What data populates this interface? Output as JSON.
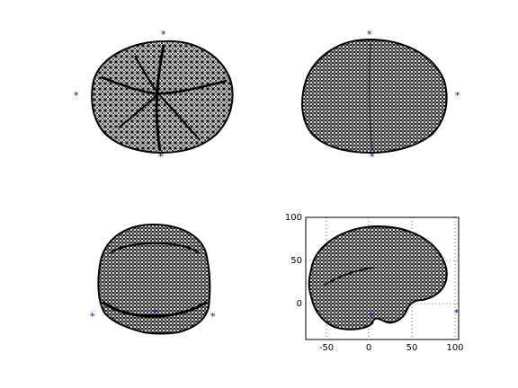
{
  "figure": {
    "background": "#ffffff",
    "mesh_color": "#000000",
    "marker_color": "#0000cc",
    "marker_symbol": "*"
  },
  "panels": [
    {
      "name": "top-view",
      "axes_visible": false,
      "marker_count": 3
    },
    {
      "name": "bottom-view",
      "axes_visible": false,
      "marker_count": 3
    },
    {
      "name": "front-view",
      "axes_visible": false,
      "marker_count": 3
    },
    {
      "name": "side-view",
      "axes_visible": true,
      "grid": "dotted",
      "marker_count": 3,
      "x_ticks": [
        "-50",
        "0",
        "50",
        "100"
      ],
      "y_ticks": [
        "100",
        "50",
        "0"
      ],
      "x_range": [
        -75,
        105
      ],
      "y_range": [
        -40,
        100
      ]
    }
  ]
}
